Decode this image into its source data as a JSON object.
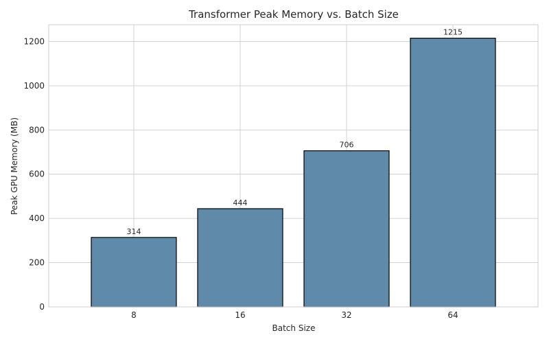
{
  "chart_data": {
    "type": "bar",
    "title": "Transformer Peak Memory vs. Batch Size",
    "xlabel": "Batch Size",
    "ylabel": "Peak GPU Memory (MB)",
    "categories": [
      "8",
      "16",
      "32",
      "64"
    ],
    "values": [
      314,
      444,
      706,
      1215
    ],
    "data_labels": [
      "314",
      "444",
      "706",
      "1215"
    ],
    "ylim": [
      0,
      1276
    ],
    "yticks": [
      0,
      200,
      400,
      600,
      800,
      1000,
      1200
    ],
    "grid": true,
    "legend": "none",
    "colors": {
      "bar_fill": "#5f8aaa",
      "bar_edge": "#000000",
      "grid": "#cccccc",
      "spine": "#cccccc",
      "text": "#262626"
    }
  }
}
